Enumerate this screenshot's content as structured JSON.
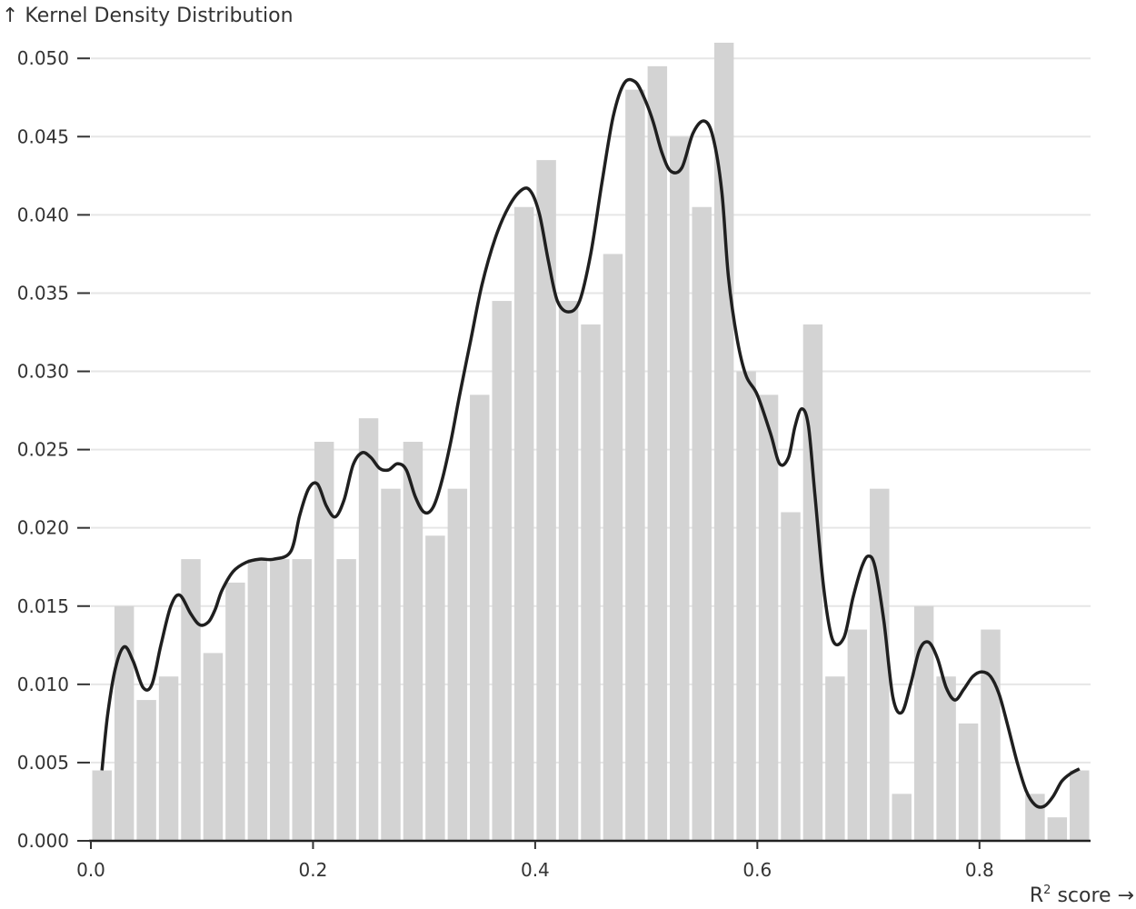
{
  "chart_data": {
    "type": "bar",
    "ylabel": "↑ Kernel Density Distribution",
    "xlabel_main": "R",
    "xlabel_sup": "2",
    "xlabel_rest": " score →",
    "xlim": [
      0.0,
      0.9
    ],
    "ylim": [
      0.0,
      0.051
    ],
    "grid": true,
    "x_ticks": [
      0.0,
      0.2,
      0.4,
      0.6,
      0.8
    ],
    "x_tick_labels": [
      "0.0",
      "0.2",
      "0.4",
      "0.6",
      "0.8"
    ],
    "y_ticks": [
      0.0,
      0.005,
      0.01,
      0.015,
      0.02,
      0.025,
      0.03,
      0.035,
      0.04,
      0.045,
      0.05
    ],
    "y_tick_labels": [
      "0.000",
      "0.005",
      "0.010",
      "0.015",
      "0.020",
      "0.025",
      "0.030",
      "0.035",
      "0.040",
      "0.045",
      "0.050"
    ],
    "bin_width": 0.02,
    "histogram": {
      "bin_start": [
        0.0,
        0.02,
        0.04,
        0.06,
        0.08,
        0.1,
        0.12,
        0.14,
        0.16,
        0.18,
        0.2,
        0.22,
        0.24,
        0.26,
        0.28,
        0.3,
        0.32,
        0.34,
        0.36,
        0.38,
        0.4,
        0.42,
        0.44,
        0.46,
        0.48,
        0.5,
        0.52,
        0.54,
        0.56,
        0.58,
        0.6,
        0.62,
        0.64,
        0.66,
        0.68,
        0.7,
        0.72,
        0.74,
        0.76,
        0.78,
        0.8,
        0.82,
        0.84,
        0.86,
        0.88
      ],
      "density": [
        0.0045,
        0.015,
        0.009,
        0.0105,
        0.018,
        0.012,
        0.0165,
        0.018,
        0.018,
        0.018,
        0.0255,
        0.018,
        0.027,
        0.0225,
        0.0255,
        0.0195,
        0.0225,
        0.0285,
        0.0345,
        0.0405,
        0.0435,
        0.0345,
        0.033,
        0.0375,
        0.048,
        0.0495,
        0.045,
        0.0405,
        0.051,
        0.03,
        0.0285,
        0.021,
        0.033,
        0.0105,
        0.0135,
        0.0225,
        0.003,
        0.015,
        0.0105,
        0.0075,
        0.0135,
        0.0,
        0.003,
        0.0015,
        0.0045
      ]
    },
    "kde": {
      "x": [
        0.01,
        0.015,
        0.022,
        0.03,
        0.038,
        0.047,
        0.055,
        0.063,
        0.072,
        0.08,
        0.09,
        0.098,
        0.106,
        0.112,
        0.118,
        0.128,
        0.14,
        0.152,
        0.165,
        0.18,
        0.188,
        0.196,
        0.204,
        0.212,
        0.22,
        0.228,
        0.236,
        0.244,
        0.252,
        0.26,
        0.268,
        0.276,
        0.284,
        0.292,
        0.3,
        0.308,
        0.316,
        0.324,
        0.332,
        0.342,
        0.352,
        0.364,
        0.376,
        0.388,
        0.396,
        0.404,
        0.412,
        0.42,
        0.43,
        0.44,
        0.45,
        0.46,
        0.47,
        0.48,
        0.49,
        0.498,
        0.506,
        0.514,
        0.522,
        0.532,
        0.542,
        0.552,
        0.56,
        0.568,
        0.574,
        0.582,
        0.59,
        0.6,
        0.612,
        0.62,
        0.628,
        0.634,
        0.64,
        0.646,
        0.652,
        0.66,
        0.668,
        0.678,
        0.686,
        0.694,
        0.7,
        0.706,
        0.714,
        0.722,
        0.73,
        0.738,
        0.746,
        0.754,
        0.762,
        0.77,
        0.778,
        0.786,
        0.794,
        0.802,
        0.81,
        0.818,
        0.826,
        0.834,
        0.842,
        0.85,
        0.858,
        0.866,
        0.874,
        0.882,
        0.89
      ],
      "y": [
        0.0045,
        0.008,
        0.011,
        0.0124,
        0.0115,
        0.0098,
        0.01,
        0.0125,
        0.015,
        0.0157,
        0.0145,
        0.0138,
        0.014,
        0.0148,
        0.016,
        0.0172,
        0.0178,
        0.018,
        0.018,
        0.0185,
        0.0208,
        0.0225,
        0.0228,
        0.0214,
        0.0207,
        0.0218,
        0.024,
        0.0248,
        0.0245,
        0.0238,
        0.0237,
        0.0241,
        0.0237,
        0.022,
        0.021,
        0.0213,
        0.023,
        0.0255,
        0.0285,
        0.032,
        0.0355,
        0.0385,
        0.0405,
        0.0416,
        0.0415,
        0.04,
        0.037,
        0.0345,
        0.0338,
        0.0345,
        0.0375,
        0.042,
        0.0462,
        0.0484,
        0.0485,
        0.0475,
        0.046,
        0.044,
        0.0428,
        0.043,
        0.0452,
        0.046,
        0.045,
        0.0415,
        0.036,
        0.032,
        0.0297,
        0.0285,
        0.026,
        0.0241,
        0.0245,
        0.0265,
        0.0276,
        0.0265,
        0.022,
        0.016,
        0.0128,
        0.013,
        0.0155,
        0.0175,
        0.0182,
        0.0175,
        0.014,
        0.0092,
        0.0082,
        0.01,
        0.0122,
        0.0127,
        0.0117,
        0.0098,
        0.009,
        0.0097,
        0.0105,
        0.0108,
        0.0105,
        0.0093,
        0.0072,
        0.005,
        0.0032,
        0.0023,
        0.0022,
        0.0028,
        0.0038,
        0.0043,
        0.0046
      ]
    }
  }
}
